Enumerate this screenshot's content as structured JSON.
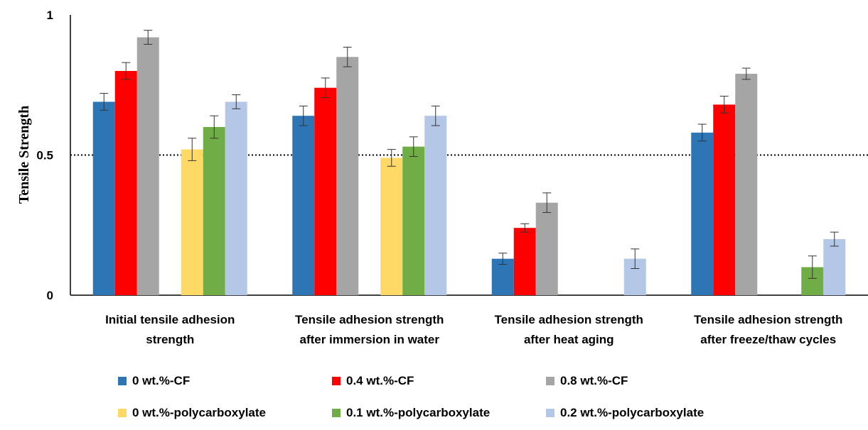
{
  "chart_data": {
    "type": "bar",
    "ylabel": "Tensile Strength",
    "ylim": [
      0,
      1
    ],
    "yticks": [
      "0",
      "0.5",
      "1"
    ],
    "reference_line": 0.5,
    "categories": [
      [
        "Initial tensile adhesion",
        "strength"
      ],
      [
        "Tensile adhesion strength",
        "after immersion in water"
      ],
      [
        "Tensile adhesion strength",
        "after heat aging"
      ],
      [
        "Tensile adhesion strength",
        "after freeze/thaw cycles"
      ]
    ],
    "series": [
      {
        "name": "0 wt.%-CF",
        "color": "#2E75B6",
        "values": [
          0.69,
          0.64,
          0.13,
          0.58
        ],
        "errors": [
          0.03,
          0.035,
          0.02,
          0.03
        ]
      },
      {
        "name": "0.4 wt.%-CF",
        "color": "#FF0000",
        "values": [
          0.8,
          0.74,
          0.24,
          0.68
        ],
        "errors": [
          0.03,
          0.035,
          0.015,
          0.03
        ]
      },
      {
        "name": "0.8 wt.%-CF",
        "color": "#A5A5A5",
        "values": [
          0.92,
          0.85,
          0.33,
          0.79
        ],
        "errors": [
          0.025,
          0.035,
          0.035,
          0.02
        ]
      },
      {
        "name": "0 wt.%-polycarboxylate",
        "color": "#FFD966",
        "values": [
          0.52,
          0.49,
          null,
          null
        ],
        "errors": [
          0.04,
          0.03,
          null,
          null
        ]
      },
      {
        "name": "0.1 wt.%-polycarboxylate",
        "color": "#70AD47",
        "values": [
          0.6,
          0.53,
          null,
          0.1
        ],
        "errors": [
          0.04,
          0.035,
          null,
          0.04
        ]
      },
      {
        "name": "0.2 wt.%-polycarboxylate",
        "color": "#B4C7E7",
        "values": [
          0.69,
          0.64,
          0.13,
          0.2
        ],
        "errors": [
          0.025,
          0.035,
          0.035,
          0.025
        ]
      }
    ],
    "grid": false,
    "legend_position": "bottom"
  }
}
